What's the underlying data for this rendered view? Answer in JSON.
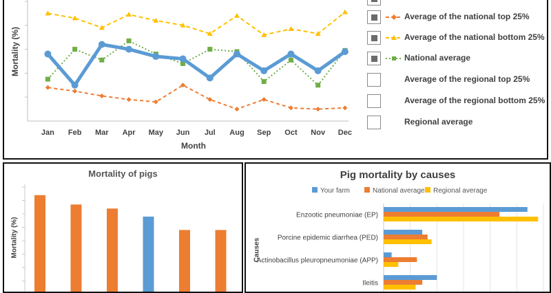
{
  "line_chart": {
    "ylabel": "Mortality (%)",
    "xlabel": "Month",
    "legend": [
      {
        "label": "",
        "checked": true,
        "color": "#6b6b6b",
        "dash": ""
      },
      {
        "label": "Average of the national top 25%",
        "checked": true,
        "color": "#ed7d31",
        "dash": "5,4",
        "marker": "diamond"
      },
      {
        "label": "Average of the national bottom 25%",
        "checked": true,
        "color": "#ffc000",
        "dash": "6,4",
        "marker": "triangle"
      },
      {
        "label": "National average",
        "checked": true,
        "color": "#70ad47",
        "dash": "2,3",
        "marker": "square"
      },
      {
        "label": "Average of the regional top 25%",
        "checked": false
      },
      {
        "label": "Average of the regional bottom 25%",
        "checked": false
      },
      {
        "label": "Regional average",
        "checked": false
      }
    ]
  },
  "bar_chart": {
    "title": "Mortality of pigs",
    "ylabel": "Mortality (%)"
  },
  "hbar_chart": {
    "title": "Pig mortality by causes",
    "ylabel": "Causes"
  },
  "chart_data": [
    {
      "type": "line",
      "x": [
        "Jan",
        "Feb",
        "Mar",
        "Apr",
        "May",
        "Jun",
        "Jul",
        "Aug",
        "Sep",
        "Oct",
        "Nov",
        "Dec"
      ],
      "xlabel": "Month",
      "ylabel": "Mortality (%)",
      "ylim": [
        0,
        5
      ],
      "grid": false,
      "legend_position": "right",
      "series": [
        {
          "key": "farm",
          "color": "#5b9bd5",
          "values": [
            2.8,
            1.5,
            3.2,
            3.0,
            2.7,
            2.6,
            1.8,
            2.8,
            2.1,
            2.8,
            2.1,
            2.9
          ]
        },
        {
          "name": "Average of the national top 25%",
          "color": "#ed7d31",
          "values": [
            1.4,
            1.25,
            1.05,
            0.9,
            0.8,
            1.5,
            0.9,
            0.5,
            0.9,
            0.55,
            0.5,
            0.55
          ]
        },
        {
          "name": "Average of the national bottom 25%",
          "color": "#ffc000",
          "values": [
            4.5,
            4.3,
            3.9,
            4.45,
            4.2,
            4.0,
            3.65,
            4.4,
            3.6,
            3.85,
            3.65,
            4.55
          ]
        },
        {
          "name": "National average",
          "color": "#70ad47",
          "values": [
            1.75,
            3.0,
            2.55,
            3.35,
            2.8,
            2.4,
            3.0,
            2.9,
            1.65,
            2.55,
            1.5,
            2.95
          ]
        }
      ]
    },
    {
      "type": "bar",
      "title": "Mortality of pigs",
      "ylabel": "Mortality (%)",
      "ylim": [
        0,
        8
      ],
      "categories": [
        "",
        "",
        "",
        "",
        "",
        ""
      ],
      "values": [
        7.4,
        6.7,
        6.4,
        5.8,
        4.8,
        4.8
      ],
      "colors": [
        "#ed7d31",
        "#ed7d31",
        "#ed7d31",
        "#5b9bd5",
        "#ed7d31",
        "#ed7d31"
      ]
    },
    {
      "type": "bar",
      "orientation": "horizontal",
      "title": "Pig mortality by causes",
      "ylabel": "Causes",
      "xlim": [
        0,
        12
      ],
      "categories": [
        "Enzootic pneumoniae (EP)",
        "Porcine epidemic diarrhea (PED)",
        "Actinobacillus pleuropneumoniae (APP)",
        "Ileitis"
      ],
      "series": [
        {
          "name": "Your farm",
          "color": "#5b9bd5",
          "values": [
            10.8,
            2.9,
            0.6,
            4.0
          ]
        },
        {
          "name": "National average",
          "color": "#ed7d31",
          "values": [
            8.7,
            3.3,
            2.5,
            2.9
          ]
        },
        {
          "name": "Regional average",
          "color": "#ffc000",
          "values": [
            11.6,
            3.6,
            1.1,
            2.4
          ]
        }
      ]
    }
  ]
}
